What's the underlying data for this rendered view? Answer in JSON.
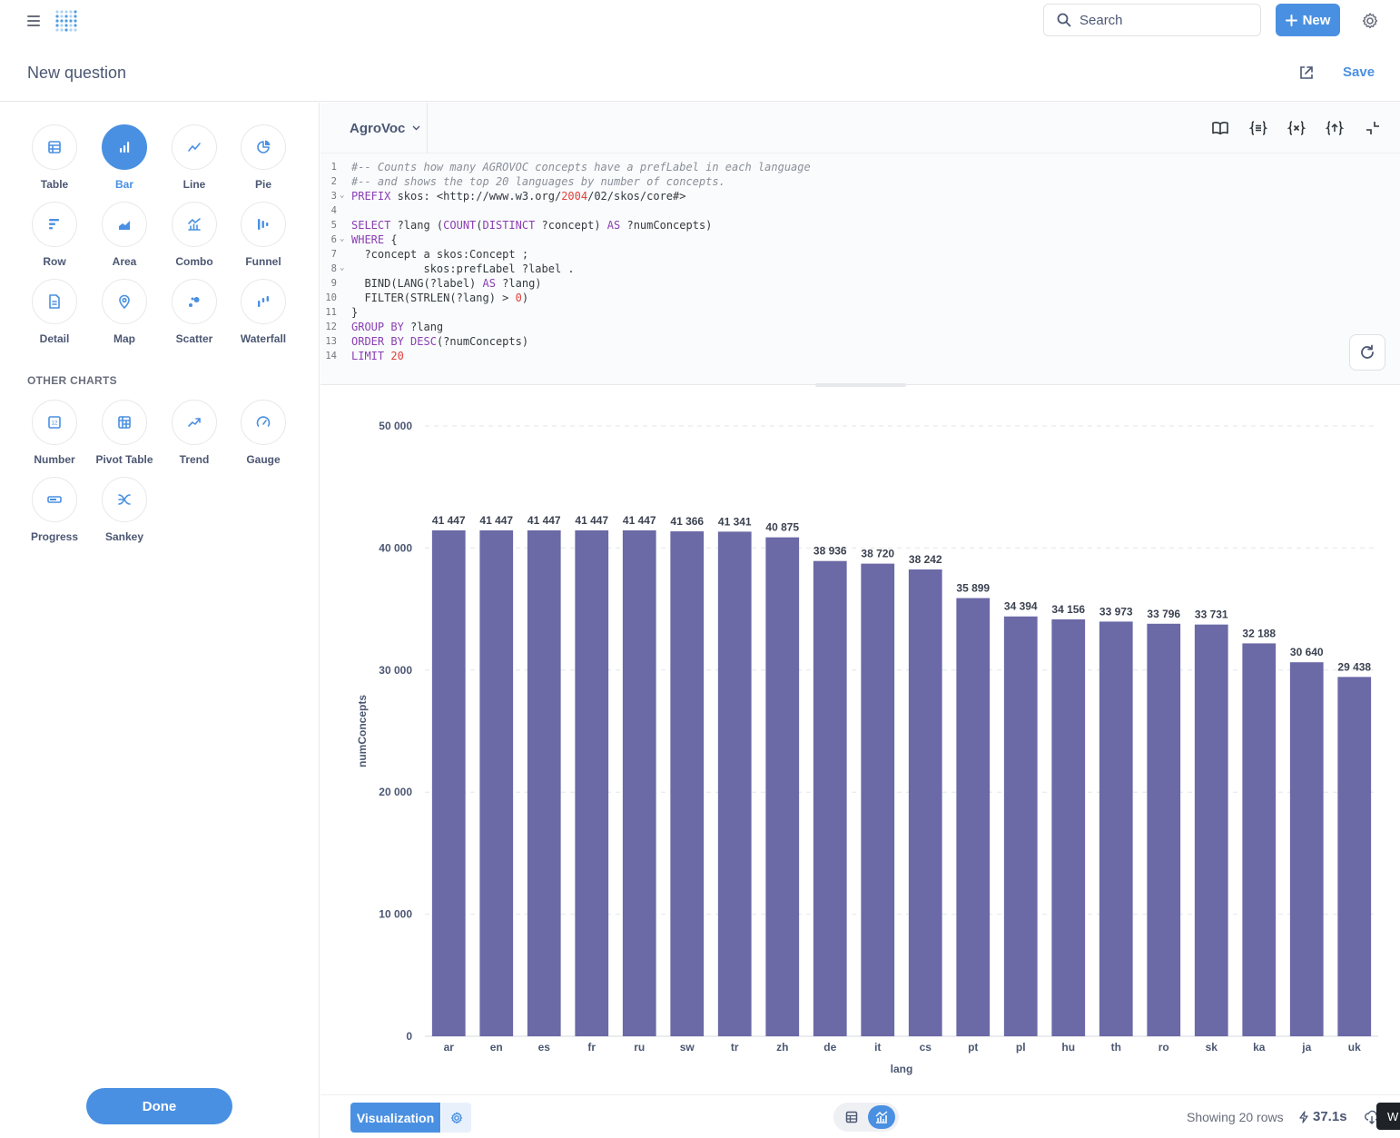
{
  "header": {
    "search_placeholder": "Search",
    "new_label": "New"
  },
  "page": {
    "title": "New question",
    "save_label": "Save"
  },
  "viz_picker": {
    "tiles": [
      {
        "label": "Table",
        "icon": "table-icon",
        "selected": false
      },
      {
        "label": "Bar",
        "icon": "bar-chart-icon",
        "selected": true
      },
      {
        "label": "Line",
        "icon": "line-chart-icon",
        "selected": false
      },
      {
        "label": "Pie",
        "icon": "pie-chart-icon",
        "selected": false
      },
      {
        "label": "Row",
        "icon": "row-chart-icon",
        "selected": false
      },
      {
        "label": "Area",
        "icon": "area-chart-icon",
        "selected": false
      },
      {
        "label": "Combo",
        "icon": "combo-chart-icon",
        "selected": false
      },
      {
        "label": "Funnel",
        "icon": "funnel-icon",
        "selected": false
      },
      {
        "label": "Detail",
        "icon": "detail-icon",
        "selected": false
      },
      {
        "label": "Map",
        "icon": "map-pin-icon",
        "selected": false
      },
      {
        "label": "Scatter",
        "icon": "scatter-icon",
        "selected": false
      },
      {
        "label": "Waterfall",
        "icon": "waterfall-icon",
        "selected": false
      }
    ],
    "other_heading": "OTHER CHARTS",
    "other_tiles": [
      {
        "label": "Number",
        "icon": "number-icon"
      },
      {
        "label": "Pivot Table",
        "icon": "pivot-table-icon"
      },
      {
        "label": "Trend",
        "icon": "trend-icon"
      },
      {
        "label": "Gauge",
        "icon": "gauge-icon"
      },
      {
        "label": "Progress",
        "icon": "progress-icon"
      },
      {
        "label": "Sankey",
        "icon": "sankey-icon"
      }
    ],
    "done_label": "Done"
  },
  "editor": {
    "database": "AgroVoc",
    "lines": [
      "#-- Counts how many AGROVOC concepts have a prefLabel in each language",
      "#-- and shows the top 20 languages by number of concepts.",
      "PREFIX skos: <http://www.w3.org/2004/02/skos/core#>",
      "",
      "SELECT ?lang (COUNT(DISTINCT ?concept) AS ?numConcepts)",
      "WHERE {",
      "  ?concept a skos:Concept ;",
      "           skos:prefLabel ?label .",
      "  BIND(LANG(?label) AS ?lang)",
      "  FILTER(STRLEN(?lang) > 0)",
      "}",
      "GROUP BY ?lang",
      "ORDER BY DESC(?numConcepts)",
      "LIMIT 20"
    ],
    "fold_lines": [
      3,
      6,
      8
    ]
  },
  "chart_data": {
    "type": "bar",
    "categories": [
      "ar",
      "en",
      "es",
      "fr",
      "ru",
      "sw",
      "tr",
      "zh",
      "de",
      "it",
      "cs",
      "pt",
      "pl",
      "hu",
      "th",
      "ro",
      "sk",
      "ka",
      "ja",
      "uk"
    ],
    "values": [
      41447,
      41447,
      41447,
      41447,
      41447,
      41366,
      41341,
      40875,
      38936,
      38720,
      38242,
      35899,
      34394,
      34156,
      33973,
      33796,
      33731,
      32188,
      30640,
      29438
    ],
    "value_labels": [
      "41 447",
      "41 447",
      "41 447",
      "41 447",
      "41 447",
      "41 366",
      "41 341",
      "40 875",
      "38 936",
      "38 720",
      "38 242",
      "35 899",
      "34 394",
      "34 156",
      "33 973",
      "33 796",
      "33 731",
      "32 188",
      "30 640",
      "29 438"
    ],
    "xlabel": "lang",
    "ylabel": "numConcepts",
    "ylim": [
      0,
      50000
    ],
    "yticks": [
      0,
      10000,
      20000,
      30000,
      40000,
      50000
    ],
    "ytick_labels": [
      "0",
      "10 000",
      "20 000",
      "30 000",
      "40 000",
      "50 000"
    ],
    "bar_color": "#6b69a6",
    "grid": true
  },
  "footer": {
    "visualization_label": "Visualization",
    "row_count": "Showing 20 rows",
    "timing": "37.1s",
    "chip_text": "W"
  }
}
